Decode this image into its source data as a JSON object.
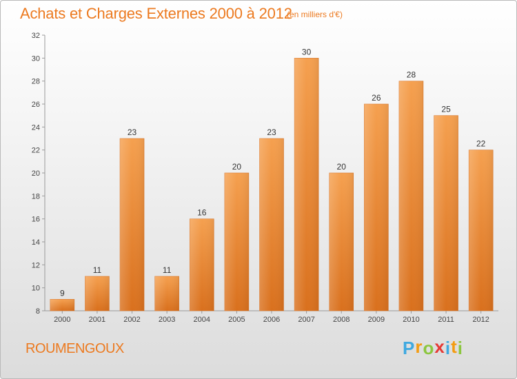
{
  "header": {
    "title": "Achats et Charges Externes 2000 à 2012",
    "subtitle": "(en milliers d'€)"
  },
  "footer": {
    "commune": "ROUMENGOUX",
    "logo_letters": [
      "P",
      "r",
      "o",
      "x",
      "i",
      "t",
      "i"
    ],
    "logo_colors": [
      "#3fa9e0",
      "#f39c12",
      "#8cc63f",
      "#e53935",
      "#3fa9e0",
      "#f39c12",
      "#8cc63f"
    ]
  },
  "chart_data": {
    "type": "bar",
    "title": "Achats et Charges Externes 2000 à 2012",
    "subtitle": "(en milliers d'€)",
    "categories": [
      "2000",
      "2001",
      "2002",
      "2003",
      "2004",
      "2005",
      "2006",
      "2007",
      "2008",
      "2009",
      "2010",
      "2011",
      "2012"
    ],
    "values": [
      9,
      11,
      23,
      11,
      16,
      20,
      23,
      30,
      20,
      26,
      28,
      25,
      22
    ],
    "ylim": [
      8,
      32
    ],
    "yticks": [
      8,
      10,
      12,
      14,
      16,
      18,
      20,
      22,
      24,
      26,
      28,
      30,
      32
    ],
    "grid": false,
    "bar_color_top": "#f5a04f",
    "bar_color_bottom": "#d9701d",
    "label_color": "#333333"
  }
}
